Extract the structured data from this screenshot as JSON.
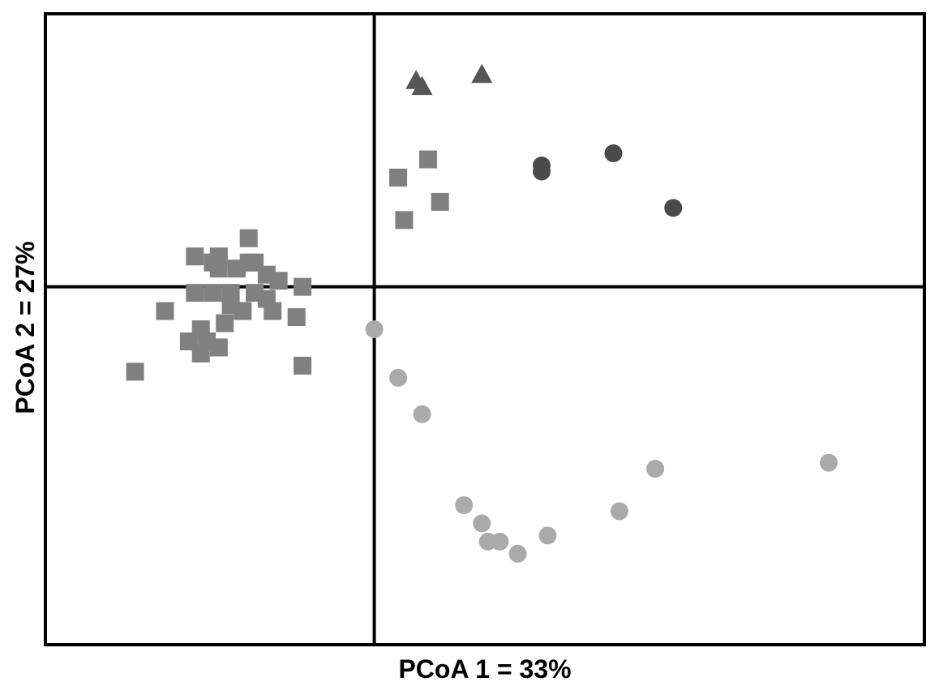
{
  "chart_data": {
    "type": "scatter",
    "title": "",
    "xlabel": "PCoA 1 = 33%",
    "ylabel": "PCoA 2 = 27%",
    "xlim": [
      -0.55,
      0.92
    ],
    "ylim": [
      -0.59,
      0.45
    ],
    "grid": false,
    "origin_lines": true,
    "series": [
      {
        "marker": "square",
        "color": "#808080",
        "points": [
          [
            0.09,
            0.21
          ],
          [
            0.04,
            0.18
          ],
          [
            0.05,
            0.11
          ],
          [
            0.11,
            0.14
          ],
          [
            -0.21,
            0.08
          ],
          [
            -0.26,
            0.05
          ],
          [
            -0.27,
            0.04
          ],
          [
            -0.3,
            0.05
          ],
          [
            -0.26,
            0.03
          ],
          [
            -0.23,
            0.03
          ],
          [
            -0.21,
            0.04
          ],
          [
            -0.2,
            0.04
          ],
          [
            -0.18,
            0.02
          ],
          [
            -0.16,
            0.01
          ],
          [
            -0.24,
            -0.01
          ],
          [
            -0.27,
            -0.01
          ],
          [
            -0.3,
            -0.01
          ],
          [
            -0.2,
            -0.01
          ],
          [
            -0.18,
            -0.02
          ],
          [
            -0.24,
            -0.03
          ],
          [
            -0.22,
            -0.04
          ],
          [
            -0.12,
            0.0
          ],
          [
            -0.17,
            -0.04
          ],
          [
            -0.35,
            -0.04
          ],
          [
            -0.13,
            -0.05
          ],
          [
            -0.25,
            -0.06
          ],
          [
            -0.29,
            -0.07
          ],
          [
            -0.31,
            -0.09
          ],
          [
            -0.28,
            -0.09
          ],
          [
            -0.26,
            -0.1
          ],
          [
            -0.29,
            -0.11
          ],
          [
            -0.4,
            -0.14
          ],
          [
            -0.12,
            -0.13
          ]
        ]
      },
      {
        "marker": "triangle",
        "color": "#555555",
        "points": [
          [
            0.07,
            0.34
          ],
          [
            0.08,
            0.33
          ],
          [
            0.18,
            0.35
          ]
        ]
      },
      {
        "marker": "circle",
        "color": "#4a4a4a",
        "points": [
          [
            0.28,
            0.2
          ],
          [
            0.28,
            0.19
          ],
          [
            0.4,
            0.22
          ],
          [
            0.5,
            0.13
          ]
        ]
      },
      {
        "marker": "circle",
        "color": "#aaaaaa",
        "points": [
          [
            0.0,
            -0.07
          ],
          [
            0.04,
            -0.15
          ],
          [
            0.08,
            -0.21
          ],
          [
            0.15,
            -0.36
          ],
          [
            0.18,
            -0.39
          ],
          [
            0.19,
            -0.42
          ],
          [
            0.21,
            -0.42
          ],
          [
            0.24,
            -0.44
          ],
          [
            0.29,
            -0.41
          ],
          [
            0.41,
            -0.37
          ],
          [
            0.47,
            -0.3
          ],
          [
            0.76,
            -0.29
          ]
        ]
      }
    ]
  }
}
